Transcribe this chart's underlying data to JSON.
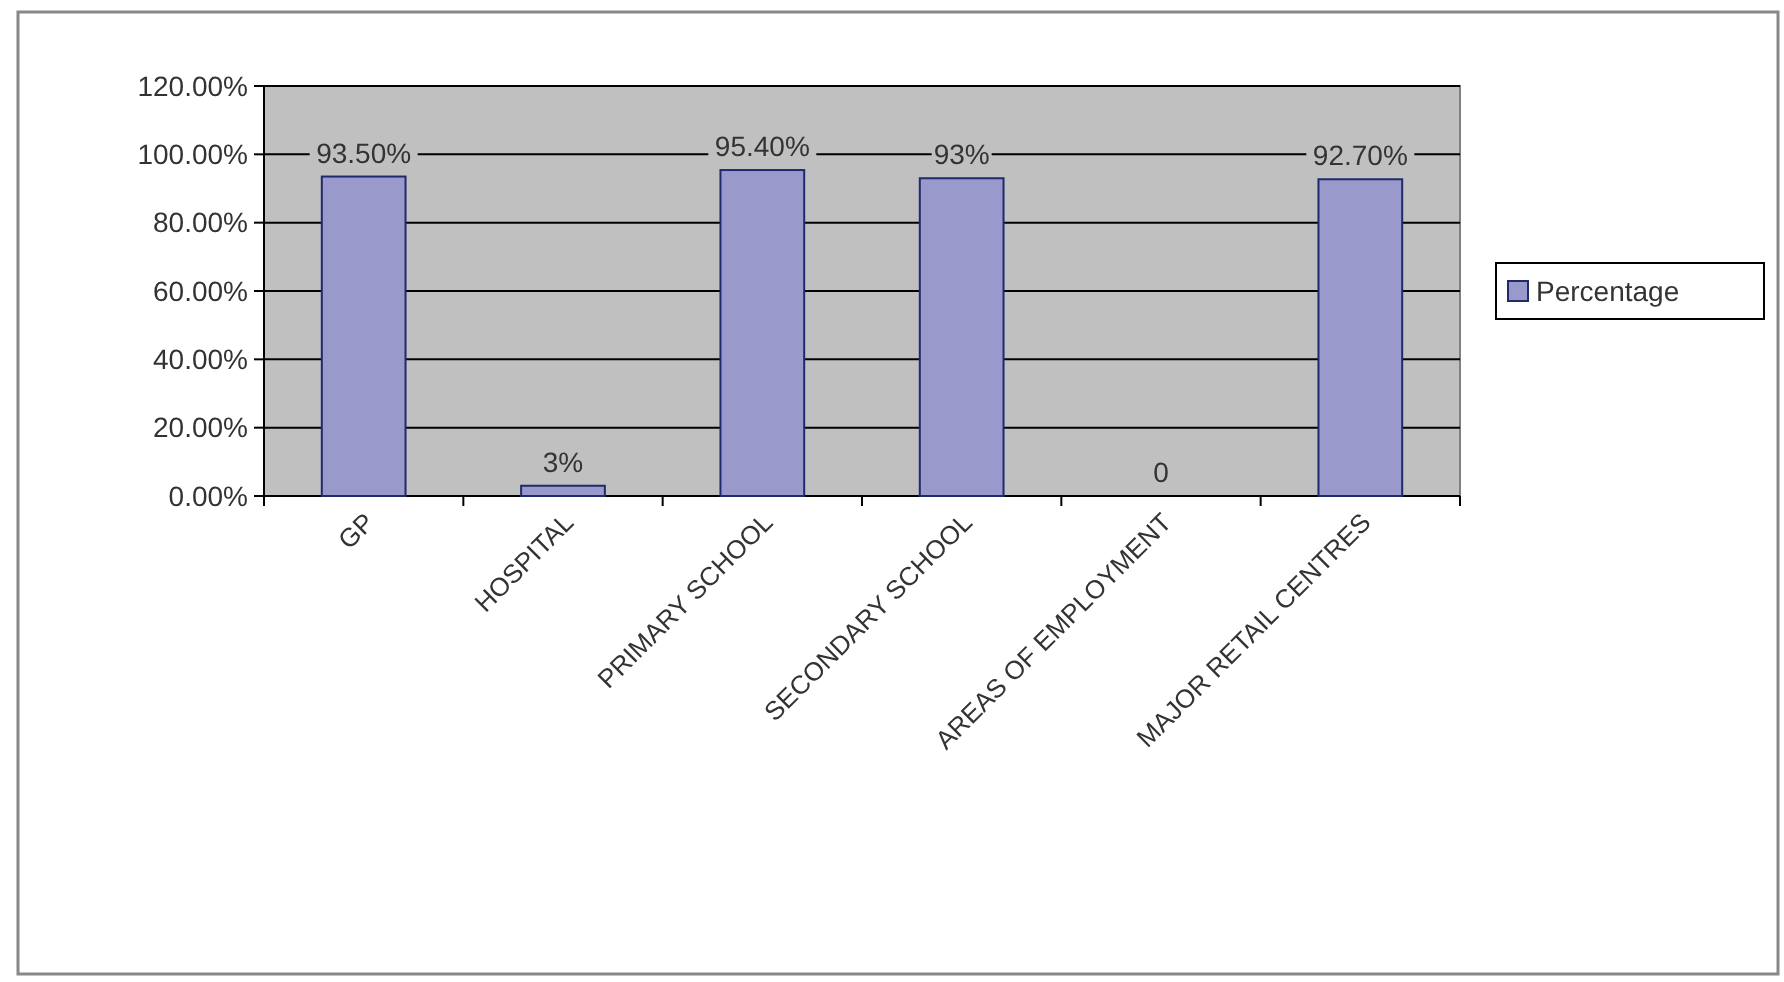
{
  "chart_data": {
    "type": "bar",
    "categories": [
      "GP",
      "HOSPITAL",
      "PRIMARY SCHOOL",
      "SECONDARY SCHOOL",
      "AREAS OF EMPLOYMENT",
      "MAJOR RETAIL CENTRES"
    ],
    "series": [
      {
        "name": "Percentage",
        "color": "#9999cc",
        "values": [
          93.5,
          3,
          95.4,
          93,
          0,
          92.7
        ],
        "value_labels": [
          "93.50%",
          "3%",
          "95.40%",
          "93%",
          "0",
          "92.70%"
        ]
      }
    ],
    "ylim": [
      0,
      120
    ],
    "yticks": [
      {
        "value": 0,
        "label": "0.00%"
      },
      {
        "value": 20,
        "label": "20.00%"
      },
      {
        "value": 40,
        "label": "40.00%"
      },
      {
        "value": 60,
        "label": "60.00%"
      },
      {
        "value": 80,
        "label": "80.00%"
      },
      {
        "value": 100,
        "label": "100.00%"
      },
      {
        "value": 120,
        "label": "120.00%"
      }
    ],
    "grid": "y",
    "legend": "right"
  }
}
